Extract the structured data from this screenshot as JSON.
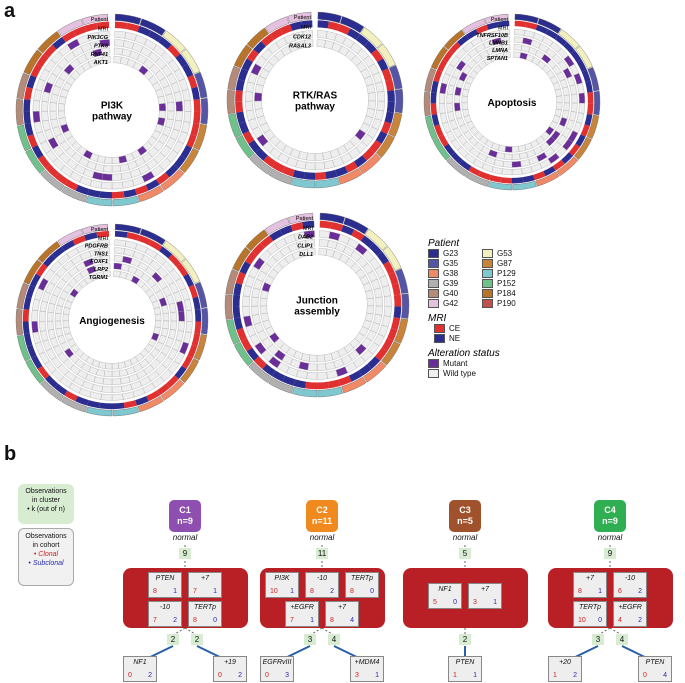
{
  "panel_a": {
    "letter": "a",
    "circles": [
      {
        "title_lines": [
          "PI3K",
          "pathway"
        ],
        "labels": [
          "Patient",
          "MRI",
          "PIK3CG",
          "PTK6",
          "RNF41",
          "AKT1"
        ]
      },
      {
        "title_lines": [
          "RTK/RAS",
          "pathway"
        ],
        "labels": [
          "Patient",
          "MRI",
          "CDK12",
          "RASAL3"
        ]
      },
      {
        "title_lines": [
          "Apoptosis"
        ],
        "labels": [
          "Patient",
          "MRI",
          "TNFRSF10B",
          "LMNB1",
          "LMNA",
          "SPTAN1"
        ]
      },
      {
        "title_lines": [
          "Angiogenesis"
        ],
        "labels": [
          "Patient",
          "MRI",
          "PDGFRB",
          "TNS1",
          "FOXF1",
          "LRP2",
          "TGRM1"
        ]
      },
      {
        "title_lines": [
          "Junction",
          "assembly"
        ],
        "labels": [
          "Patient",
          "MRI",
          "DAB2",
          "CLIP1",
          "DLL1"
        ]
      }
    ],
    "legend": {
      "patient_header": "Patient",
      "patients": [
        {
          "label": "G23",
          "color": "#2b2e8f"
        },
        {
          "label": "G53",
          "color": "#f3f0bf"
        },
        {
          "label": "G35",
          "color": "#5555a8"
        },
        {
          "label": "G87",
          "color": "#c7843a"
        },
        {
          "label": "G38",
          "color": "#f08a66"
        },
        {
          "label": "P129",
          "color": "#7fc8d0"
        },
        {
          "label": "G39",
          "color": "#b0b0b0"
        },
        {
          "label": "P152",
          "color": "#6fc08a"
        },
        {
          "label": "G40",
          "color": "#b48a78"
        },
        {
          "label": "P184",
          "color": "#b8742a"
        },
        {
          "label": "G42",
          "color": "#e5c1e0"
        },
        {
          "label": "P190",
          "color": "#c0504d"
        }
      ],
      "mri_header": "MRI",
      "mri": [
        {
          "label": "CE",
          "color": "#e03030"
        },
        {
          "label": "NE",
          "color": "#2b2e8f"
        }
      ],
      "alteration_header": "Alteration status",
      "alteration": [
        {
          "label": "Mutant",
          "color": "#6a2d9a"
        },
        {
          "label": "Wild type",
          "color": "#eeeeee"
        }
      ]
    }
  },
  "panel_b": {
    "letter": "b",
    "key_cluster": {
      "line1": "Observations",
      "line2": "in cluster",
      "line3": "• k (out of n)"
    },
    "key_cohort": {
      "line1": "Observations",
      "line2": "in cohort",
      "clonal": "• Clonal",
      "subclonal": "• Subclonal"
    },
    "clusters": [
      {
        "name": "C1",
        "n": "n=9",
        "color": "#8e4fb0",
        "normal": "normal",
        "k": "9",
        "genes": [
          {
            "name": "PTEN",
            "c": "8",
            "s": "1"
          },
          {
            "name": "+7",
            "c": "7",
            "s": "1"
          },
          {
            "name": "-10",
            "c": "7",
            "s": "2"
          },
          {
            "name": "TERTp",
            "c": "8",
            "s": "0"
          }
        ],
        "branches": [
          {
            "k": "2",
            "name": "NF1",
            "c": "0",
            "s": "2"
          },
          {
            "k": "2",
            "name": "+19",
            "c": "0",
            "s": "2"
          }
        ]
      },
      {
        "name": "C2",
        "n": "n=11",
        "color": "#f08a1e",
        "normal": "normal",
        "k": "11",
        "genes": [
          {
            "name": "PI3K",
            "c": "10",
            "s": "1"
          },
          {
            "name": "-10",
            "c": "8",
            "s": "2"
          },
          {
            "name": "TERTp",
            "c": "8",
            "s": "0"
          },
          {
            "name": "+EGFR",
            "c": "7",
            "s": "1"
          },
          {
            "name": "+7",
            "c": "8",
            "s": "4"
          }
        ],
        "branches": [
          {
            "k": "3",
            "name": "EGFRvIII",
            "c": "0",
            "s": "3"
          },
          {
            "k": "4",
            "name": "+MDM4",
            "c": "3",
            "s": "1"
          }
        ]
      },
      {
        "name": "C3",
        "n": "n=5",
        "color": "#a0522d",
        "normal": "normal",
        "k": "5",
        "genes": [
          {
            "name": "NF1",
            "c": "5",
            "s": "0"
          },
          {
            "name": "+7",
            "c": "3",
            "s": "1"
          }
        ],
        "branches": [
          {
            "k": "2",
            "name": "PTEN",
            "c": "1",
            "s": "1"
          }
        ]
      },
      {
        "name": "C4",
        "n": "n=9",
        "color": "#2fae52",
        "normal": "normal",
        "k": "9",
        "genes": [
          {
            "name": "+7",
            "c": "8",
            "s": "1"
          },
          {
            "name": "-10",
            "c": "6",
            "s": "2"
          },
          {
            "name": "TERTp",
            "c": "10",
            "s": "0"
          },
          {
            "name": "+EGFR",
            "c": "4",
            "s": "2"
          }
        ],
        "branches": [
          {
            "k": "3",
            "name": "+20",
            "c": "1",
            "s": "2"
          },
          {
            "k": "4",
            "name": "PTEN",
            "c": "0",
            "s": "4"
          }
        ]
      }
    ]
  }
}
